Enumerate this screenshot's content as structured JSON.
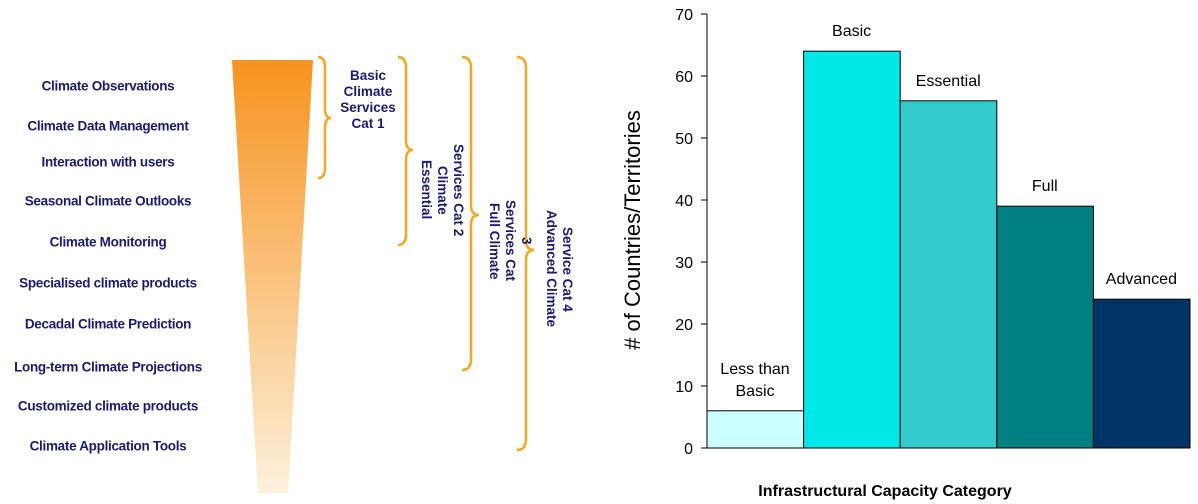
{
  "diagram": {
    "services": [
      "Climate Observations",
      "Climate Data Management",
      "Interaction with users",
      "Seasonal Climate Outlooks",
      "Climate Monitoring",
      "Specialised climate products",
      "Decadal Climate Prediction",
      "Long-term Climate Projections",
      "Customized climate products",
      "Climate Application Tools"
    ],
    "levels": [
      "Basic Climate Services Cat 1",
      "Essential Climate Services Cat 2",
      "Full Climate Services Cat 3",
      "Advanced Climate Service Cat  4"
    ]
  },
  "chart_data": {
    "type": "bar",
    "y_label": "# of Countries/Territories",
    "x_label": "Infrastructural Capacity Category",
    "categories": [
      "Less than Basic",
      "Basic",
      "Essential",
      "Full",
      "Advanced"
    ],
    "values": [
      6,
      64,
      56,
      39,
      24
    ],
    "colors": [
      "#ccffff",
      "#00e8e8",
      "#33cccc",
      "#008080",
      "#003366"
    ],
    "ylim": [
      0,
      70
    ],
    "yticks": [
      0,
      10,
      20,
      30,
      40,
      50,
      60,
      70
    ],
    "grid": false
  }
}
